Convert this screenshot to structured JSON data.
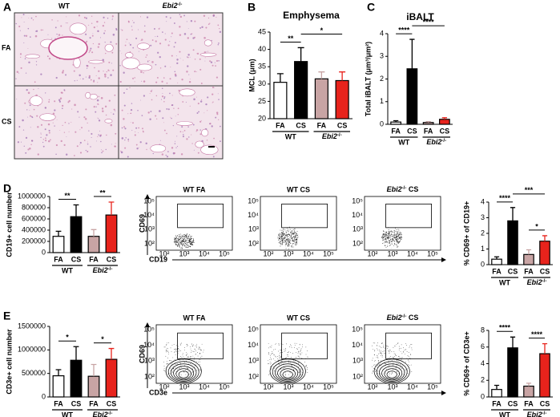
{
  "chart_data": [
    {
      "type": "bar",
      "title": "Emphysema",
      "y_label": "MCL (μm)",
      "categories": [
        "FA",
        "CS",
        "FA",
        "CS"
      ],
      "groups": [
        "WT",
        {
          "text": "Ebi2",
          "sup": "-/-"
        }
      ],
      "values": [
        30.5,
        36.5,
        31.5,
        31
      ],
      "errors": [
        2.5,
        4,
        2,
        2.5
      ],
      "colors": [
        "#ffffff",
        "#000000",
        "#c8a4a4",
        "#e8231c"
      ],
      "ylim": [
        20,
        45
      ],
      "yticks": [
        20,
        25,
        30,
        35,
        40,
        45
      ],
      "annotations": [
        {
          "text": "**",
          "pair": [
            0,
            1
          ]
        },
        {
          "text": "*",
          "pair": [
            1,
            3
          ]
        }
      ]
    },
    {
      "type": "bar",
      "title": "iBALT",
      "y_label": "Total iBALT (μm³/μm²)",
      "categories": [
        "FA",
        "CS",
        "FA",
        "CS"
      ],
      "groups": [
        "WT",
        {
          "text": "Ebi2",
          "sup": "-/-"
        }
      ],
      "values": [
        0.1,
        2.45,
        0.08,
        0.22
      ],
      "errors": [
        0.06,
        1.3,
        0.04,
        0.07
      ],
      "colors": [
        "#ffffff",
        "#000000",
        "#c8a4a4",
        "#e8231c"
      ],
      "ylim": [
        0,
        4
      ],
      "yticks": [
        0,
        1,
        2,
        3,
        4
      ],
      "annotations": [
        {
          "text": "****",
          "pair": [
            0,
            1
          ]
        },
        {
          "text": "****",
          "pair": [
            1,
            3
          ]
        }
      ]
    },
    {
      "type": "bar",
      "y_label": "CD19+ cell number",
      "categories": [
        "FA",
        "CS",
        "FA",
        "CS"
      ],
      "groups": [
        "WT",
        {
          "text": "Ebi2",
          "sup": "-/-"
        }
      ],
      "values": [
        290000,
        640000,
        290000,
        670000
      ],
      "errors": [
        90000,
        210000,
        120000,
        230000
      ],
      "colors": [
        "#ffffff",
        "#000000",
        "#c8a4a4",
        "#e8231c"
      ],
      "ylim": [
        0,
        1000000
      ],
      "yticks": [
        0,
        200000,
        400000,
        600000,
        800000,
        1000000
      ],
      "annotations": [
        {
          "text": "**",
          "pair": [
            0,
            1
          ]
        },
        {
          "text": "**",
          "pair": [
            2,
            3
          ]
        }
      ]
    },
    {
      "type": "bar",
      "y_label": "% CD69+ of CD19+",
      "categories": [
        "FA",
        "CS",
        "FA",
        "CS"
      ],
      "groups": [
        "WT",
        {
          "text": "Ebi2",
          "sup": "-/-"
        }
      ],
      "values": [
        0.35,
        2.8,
        0.65,
        1.5
      ],
      "errors": [
        0.15,
        0.85,
        0.3,
        0.35
      ],
      "colors": [
        "#ffffff",
        "#000000",
        "#c8a4a4",
        "#e8231c"
      ],
      "ylim": [
        0,
        4
      ],
      "yticks": [
        0,
        1,
        2,
        3,
        4
      ],
      "annotations": [
        {
          "text": "****",
          "pair": [
            0,
            1
          ]
        },
        {
          "text": "*",
          "pair": [
            2,
            3
          ]
        },
        {
          "text": "***",
          "pair": [
            1,
            3
          ]
        }
      ]
    },
    {
      "type": "bar",
      "y_label": "CD3e+ cell number",
      "categories": [
        "FA",
        "CS",
        "FA",
        "CS"
      ],
      "groups": [
        "WT",
        {
          "text": "Ebi2",
          "sup": "-/-"
        }
      ],
      "values": [
        450000,
        780000,
        440000,
        800000
      ],
      "errors": [
        130000,
        290000,
        250000,
        230000
      ],
      "colors": [
        "#ffffff",
        "#000000",
        "#c8a4a4",
        "#e8231c"
      ],
      "ylim": [
        0,
        1500000
      ],
      "yticks": [
        0,
        500000,
        1000000,
        1500000
      ],
      "annotations": [
        {
          "text": "*",
          "pair": [
            0,
            1
          ]
        },
        {
          "text": "*",
          "pair": [
            2,
            3
          ]
        }
      ]
    },
    {
      "type": "bar",
      "y_label": "% CD69+ of CD3e+",
      "categories": [
        "FA",
        "CS",
        "FA",
        "CS"
      ],
      "groups": [
        "WT",
        {
          "text": "Ebi2",
          "sup": "-/-"
        }
      ],
      "values": [
        0.9,
        5.9,
        1.3,
        5.2
      ],
      "errors": [
        0.5,
        1.3,
        0.35,
        1.2
      ],
      "colors": [
        "#ffffff",
        "#000000",
        "#c8a4a4",
        "#e8231c"
      ],
      "ylim": [
        0,
        8
      ],
      "yticks": [
        0,
        2,
        4,
        6,
        8
      ],
      "annotations": [
        {
          "text": "****",
          "pair": [
            0,
            1
          ]
        },
        {
          "text": "****",
          "pair": [
            2,
            3
          ]
        }
      ]
    }
  ],
  "panel_letters": [
    "A",
    "B",
    "C",
    "D",
    "E"
  ],
  "micrograph": {
    "columns": [
      "WT",
      {
        "text": "Ebi2",
        "sup": "-/-"
      }
    ],
    "rows": [
      "FA",
      "CS"
    ]
  },
  "flow": [
    {
      "titles": [
        "WT FA",
        "WT CS",
        {
          "text": "Ebi2",
          "sup": "-/-",
          "rest": " CS"
        }
      ],
      "y_label": "CD69",
      "x_label": "CD19"
    },
    {
      "titles": [
        "WT FA",
        "WT CS",
        {
          "text": "Ebi2",
          "sup": "-/-",
          "rest": " CS"
        }
      ],
      "y_label": "CD69",
      "x_label": "CD3e"
    }
  ],
  "flow_ticks": [
    "10²",
    "10³",
    "10⁴",
    "10⁵"
  ]
}
